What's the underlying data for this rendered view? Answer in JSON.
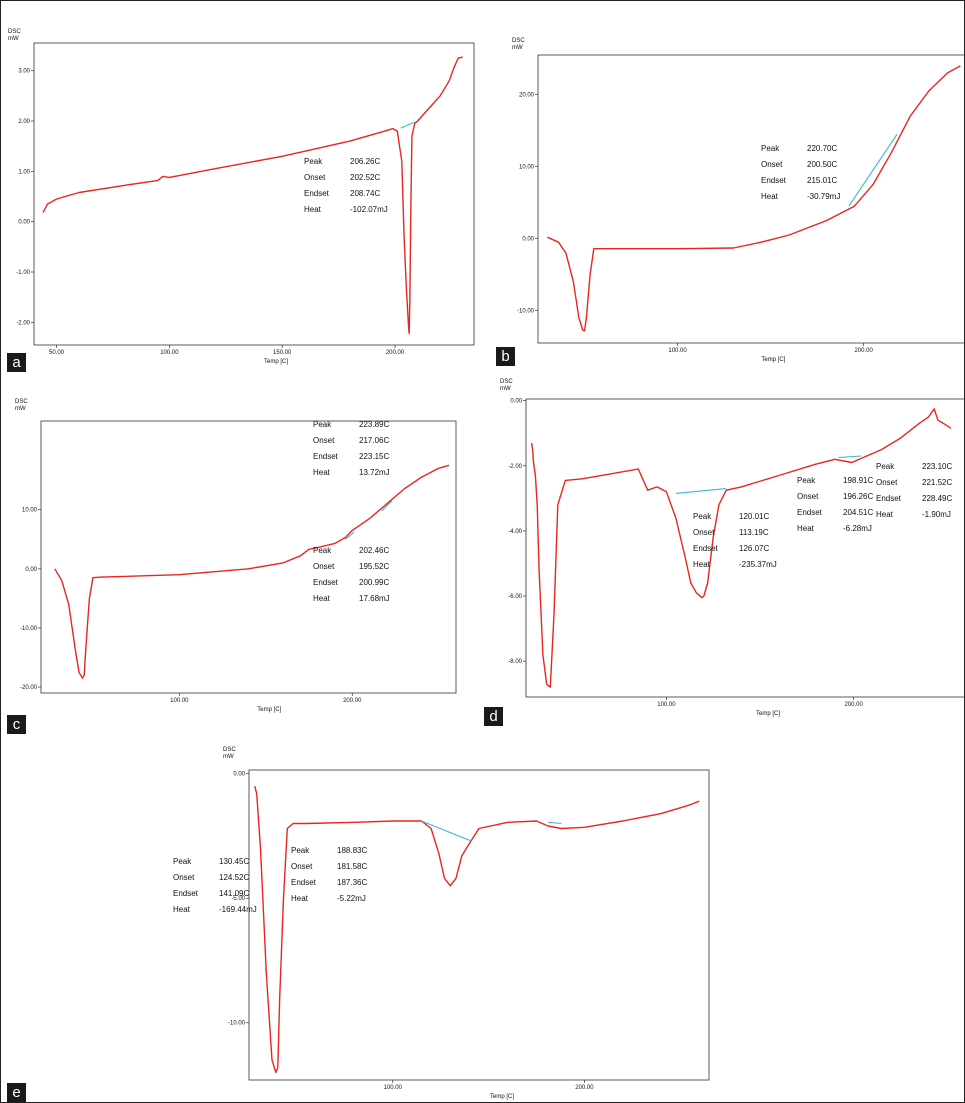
{
  "chart_data": [
    {
      "type": "line",
      "panel_label": "a",
      "ylabel_top": "DSC",
      "ylabel_unit": "mW",
      "xlabel": "Temp [C]",
      "xlim": [
        40,
        235
      ],
      "ylim": [
        -2.45,
        3.55
      ],
      "xticks": [
        "50.00",
        "100.00",
        "150.00",
        "200.00"
      ],
      "xtick_values": [
        50,
        100,
        150,
        200
      ],
      "yticks": [
        "3.00",
        "2.00",
        "1.00",
        "0.00",
        "-1.00",
        "-2.00"
      ],
      "ytick_values": [
        3,
        2,
        1,
        0,
        -1,
        -2
      ],
      "series": [
        {
          "color": "#e8261f",
          "x": [
            44,
            46,
            50,
            60,
            80,
            95,
            97,
            100,
            120,
            150,
            180,
            197,
            199,
            201,
            203,
            204,
            205,
            206,
            206.3,
            206.6,
            207,
            207.5,
            208.7,
            210,
            215,
            220,
            224,
            226,
            228,
            230
          ],
          "y": [
            0.18,
            0.35,
            0.45,
            0.58,
            0.72,
            0.82,
            0.9,
            0.88,
            1.05,
            1.3,
            1.6,
            1.82,
            1.85,
            1.8,
            1.2,
            -0.3,
            -1.3,
            -2.1,
            -2.22,
            -1.5,
            0.2,
            1.7,
            1.95,
            2.0,
            2.25,
            2.5,
            2.8,
            3.05,
            3.25,
            3.27
          ]
        },
        {
          "color": "#3ab8d8",
          "x": [
            202.5,
            208.7
          ],
          "y": [
            1.86,
            1.98
          ]
        }
      ],
      "annotations": [
        {
          "label": "Peak",
          "value": "206.26C"
        },
        {
          "label": "Onset",
          "value": "202.52C"
        },
        {
          "label": "Endset",
          "value": "208.74C"
        },
        {
          "label": "Heat",
          "value": "-102.07mJ"
        }
      ]
    },
    {
      "type": "line",
      "panel_label": "b",
      "ylabel_top": "DSC",
      "ylabel_unit": "mW",
      "xlabel": "Temp [C]",
      "xlim": [
        25,
        255
      ],
      "ylim": [
        -14.5,
        25.5
      ],
      "xticks": [
        "100.00",
        "200.00"
      ],
      "xtick_values": [
        100,
        200
      ],
      "yticks": [
        "20.00",
        "10.00",
        "0.00",
        "-10.00"
      ],
      "ytick_values": [
        20,
        10,
        0,
        -10
      ],
      "series": [
        {
          "color": "#e8261f",
          "x": [
            30,
            36,
            40,
            44,
            47,
            49,
            50,
            51,
            53,
            55,
            60,
            100,
            130,
            145,
            160,
            180,
            195,
            205,
            215,
            225,
            235,
            245,
            252
          ],
          "y": [
            0.2,
            -0.5,
            -2,
            -6,
            -11,
            -12.7,
            -12.8,
            -11,
            -5,
            -1.4,
            -1.4,
            -1.4,
            -1.3,
            -0.5,
            0.5,
            2.5,
            4.5,
            7.5,
            12,
            17,
            20.5,
            23,
            24
          ]
        },
        {
          "color": "#3ab8d8",
          "x": [
            192,
            218
          ],
          "y": [
            4.5,
            14.5
          ]
        }
      ],
      "annotations": [
        {
          "label": "Peak",
          "value": "220.70C"
        },
        {
          "label": "Onset",
          "value": "200.50C"
        },
        {
          "label": "Endset",
          "value": "215.01C"
        },
        {
          "label": "Heat",
          "value": "-30.79mJ"
        }
      ]
    },
    {
      "type": "line",
      "panel_label": "c",
      "ylabel_top": "DSC",
      "ylabel_unit": "mW",
      "xlabel": "Temp [C]",
      "xlim": [
        20,
        260
      ],
      "ylim": [
        -21,
        25
      ],
      "xticks": [
        "100.00",
        "200.00"
      ],
      "xtick_values": [
        100,
        200
      ],
      "yticks": [
        "10.00",
        "0.00",
        "-10.00",
        "-20.00"
      ],
      "ytick_values": [
        10,
        0,
        -10,
        -20
      ],
      "series": [
        {
          "color": "#e8261f",
          "x": [
            28,
            32,
            36,
            40,
            42,
            44,
            45,
            46,
            48,
            50,
            55,
            100,
            140,
            160,
            170,
            175,
            180,
            190,
            196,
            200,
            210,
            220,
            230,
            240,
            250,
            256
          ],
          "y": [
            0,
            -2,
            -6,
            -14,
            -17.5,
            -18.5,
            -18,
            -13,
            -5,
            -1.5,
            -1.4,
            -1,
            0,
            1,
            2.2,
            3.3,
            3.6,
            4.3,
            5.3,
            6.5,
            8.5,
            11,
            13.5,
            15.5,
            17,
            17.5
          ]
        },
        {
          "color": "#3ab8d8",
          "x": [
            196,
            201
          ],
          "y": [
            5.0,
            6.2
          ]
        },
        {
          "color": "#3ab8d8",
          "x": [
            217,
            223
          ],
          "y": [
            9.8,
            11.5
          ]
        }
      ],
      "annotations": [
        {
          "label": "Peak",
          "value": "223.89C"
        },
        {
          "label": "Onset",
          "value": "217.06C"
        },
        {
          "label": "Endset",
          "value": "223.15C"
        },
        {
          "label": "Heat",
          "value": "13.72mJ"
        },
        {
          "label": "Peak",
          "value": "202.46C"
        },
        {
          "label": "Onset",
          "value": "195.52C"
        },
        {
          "label": "Endset",
          "value": "200.99C"
        },
        {
          "label": "Heat",
          "value": "17.68mJ"
        }
      ]
    },
    {
      "type": "line",
      "panel_label": "d",
      "ylabel_top": "DSC",
      "ylabel_unit": "mW",
      "xlabel": "Temp [C]",
      "xlim": [
        25,
        260
      ],
      "ylim": [
        -9.1,
        0.05
      ],
      "xticks": [
        "100.00",
        "200.00"
      ],
      "xtick_values": [
        100,
        200
      ],
      "yticks": [
        "0.00",
        "-2.00",
        "-4.00",
        "-6.00",
        "-8.00"
      ],
      "ytick_values": [
        0,
        -2,
        -4,
        -6,
        -8
      ],
      "series": [
        {
          "color": "#e8261f",
          "x": [
            28,
            28.5,
            29,
            30,
            31,
            32,
            34,
            36,
            38,
            40,
            42,
            46,
            55,
            70,
            85,
            90,
            95,
            100,
            105,
            110,
            113,
            116,
            119,
            120,
            122,
            125,
            128,
            132,
            140,
            160,
            180,
            190,
            199,
            205,
            215,
            225,
            235,
            240,
            243,
            245,
            248,
            252
          ],
          "y": [
            -1.3,
            -1.5,
            -1.9,
            -2.3,
            -3.2,
            -5.2,
            -7.8,
            -8.7,
            -8.8,
            -6.5,
            -3.2,
            -2.45,
            -2.4,
            -2.25,
            -2.1,
            -2.75,
            -2.65,
            -2.8,
            -3.6,
            -4.8,
            -5.6,
            -5.9,
            -6.05,
            -6.0,
            -5.6,
            -4.2,
            -3.2,
            -2.75,
            -2.65,
            -2.3,
            -1.95,
            -1.8,
            -1.9,
            -1.75,
            -1.5,
            -1.15,
            -0.7,
            -0.5,
            -0.25,
            -0.6,
            -0.7,
            -0.85
          ]
        },
        {
          "color": "#3ab8d8",
          "x": [
            105,
            132
          ],
          "y": [
            -2.85,
            -2.7
          ]
        },
        {
          "color": "#3ab8d8",
          "x": [
            192,
            204
          ],
          "y": [
            -1.75,
            -1.7
          ]
        }
      ],
      "annotations": [
        {
          "label": "Peak",
          "value": "120.01C"
        },
        {
          "label": "Onset",
          "value": "113.19C"
        },
        {
          "label": "Endset",
          "value": "126.07C"
        },
        {
          "label": "Heat",
          "value": "-235.37mJ"
        },
        {
          "label": "Peak",
          "value": "198.91C"
        },
        {
          "label": "Onset",
          "value": "196.26C"
        },
        {
          "label": "Endset",
          "value": "204.51C"
        },
        {
          "label": "Heat",
          "value": "-6.28mJ"
        },
        {
          "label": "Peak",
          "value": "223.10C"
        },
        {
          "label": "Onset",
          "value": "221.52C"
        },
        {
          "label": "Endset",
          "value": "228.49C"
        },
        {
          "label": "Heat",
          "value": "-1.90mJ"
        }
      ]
    },
    {
      "type": "line",
      "panel_label": "e",
      "ylabel_top": "DSC",
      "ylabel_unit": "mW",
      "xlabel": "Temp [C]",
      "xlim": [
        25,
        265
      ],
      "ylim": [
        -12.3,
        0.15
      ],
      "xticks": [
        "100.00",
        "200.00"
      ],
      "xtick_values": [
        100,
        200
      ],
      "yticks": [
        "0.00",
        "-5.00",
        "-10.00"
      ],
      "ytick_values": [
        0,
        -5,
        -10
      ],
      "series": [
        {
          "color": "#e8261f",
          "x": [
            28,
            29,
            31,
            34,
            37,
            39,
            40,
            41,
            43,
            45,
            48,
            55,
            80,
            100,
            115,
            120,
            124,
            127,
            130,
            133,
            136,
            140,
            145,
            160,
            175,
            181,
            188,
            200,
            220,
            240,
            255,
            260
          ],
          "y": [
            -0.5,
            -0.8,
            -3,
            -8,
            -11.5,
            -12,
            -11.8,
            -9,
            -5,
            -2.2,
            -2,
            -2,
            -1.95,
            -1.9,
            -1.9,
            -2.2,
            -3.2,
            -4.2,
            -4.5,
            -4.2,
            -3.3,
            -2.8,
            -2.2,
            -1.95,
            -1.9,
            -2.1,
            -2.2,
            -2.15,
            -1.9,
            -1.6,
            -1.25,
            -1.1
          ]
        },
        {
          "color": "#3ab8d8",
          "x": [
            115,
            141
          ],
          "y": [
            -1.9,
            -2.7
          ]
        },
        {
          "color": "#3ab8d8",
          "x": [
            181,
            188
          ],
          "y": [
            -1.95,
            -2.0
          ]
        }
      ],
      "annotations": [
        {
          "label": "Peak",
          "value": "130.45C"
        },
        {
          "label": "Onset",
          "value": "124.52C"
        },
        {
          "label": "Endset",
          "value": "141.09C"
        },
        {
          "label": "Heat",
          "value": "-169.44mJ"
        },
        {
          "label": "Peak",
          "value": "188.83C"
        },
        {
          "label": "Onset",
          "value": "181.58C"
        },
        {
          "label": "Endset",
          "value": "187.36C"
        },
        {
          "label": "Heat",
          "value": "-5.22mJ"
        }
      ]
    }
  ]
}
